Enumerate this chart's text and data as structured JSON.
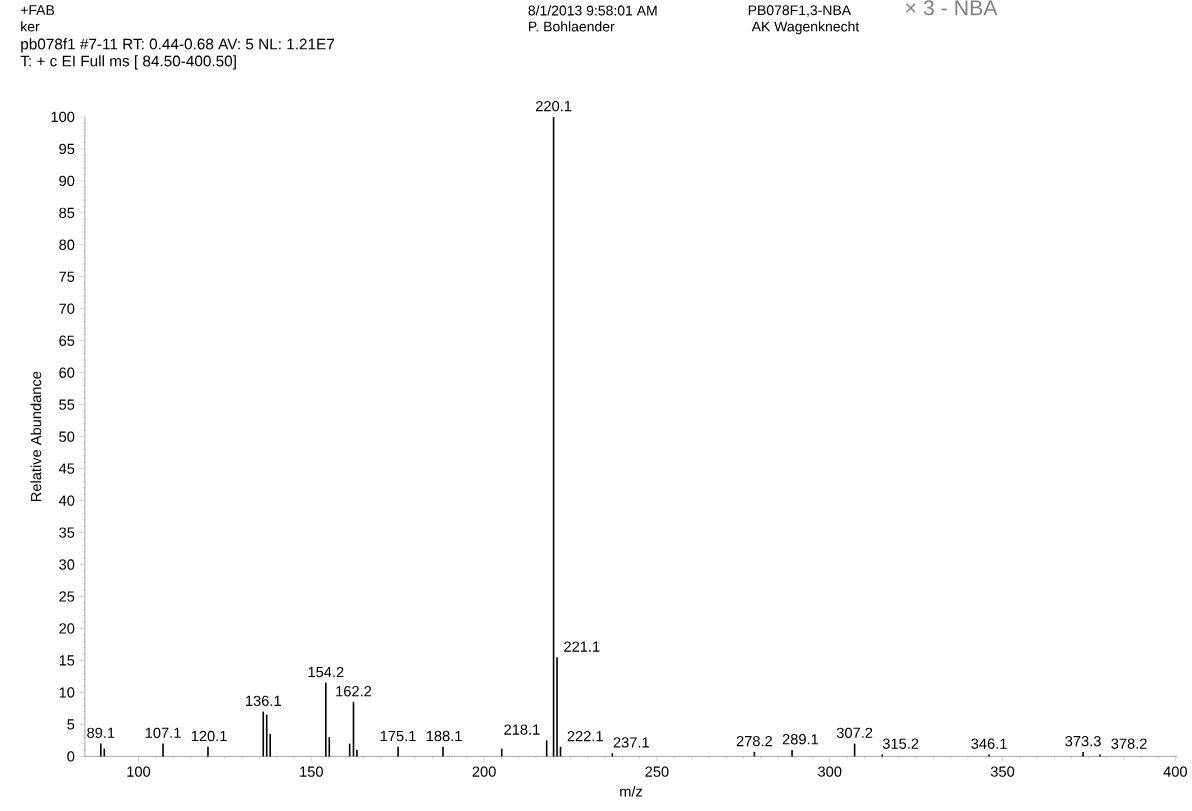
{
  "chart_data": {
    "type": "bar",
    "xlabel": "m/z",
    "ylabel": "Relative Abundance",
    "color": "#000000",
    "x": [
      89.1,
      90.1,
      107.1,
      120.1,
      136.1,
      137.1,
      138.1,
      154.2,
      155.2,
      161.1,
      162.2,
      163.2,
      175.1,
      188.1,
      205.1,
      218.1,
      220.1,
      221.1,
      222.1,
      237.1,
      278.2,
      289.1,
      307.2,
      315.2,
      346.1,
      373.3,
      378.2
    ],
    "values": [
      2.0,
      1.2,
      2.0,
      1.5,
      7.0,
      6.5,
      3.5,
      11.5,
      3.0,
      2.0,
      8.5,
      1.0,
      1.5,
      1.5,
      1.2,
      2.5,
      100,
      15.5,
      1.5,
      0.5,
      0.7,
      1.0,
      2.0,
      0.3,
      0.3,
      0.7,
      0.3
    ],
    "xlim": [
      84.5,
      400.5
    ],
    "ylim": [
      0,
      100
    ],
    "xticks": [
      100,
      150,
      200,
      250,
      300,
      350,
      400
    ],
    "yticks": [
      0,
      5,
      10,
      15,
      20,
      25,
      30,
      35,
      40,
      45,
      50,
      55,
      60,
      65,
      70,
      75,
      80,
      85,
      90,
      95,
      100
    ],
    "annotations": [
      "+FAB",
      "ker",
      "8/1/2013 9:58:01 AM",
      "P. Bohlaender",
      "PB078F1,3-NBA",
      "AK Wagenknecht",
      "pb078f1 #7-11  RT: 0.44-0.68  AV: 5  NL: 1.21E7",
      "T: + c EI Full ms [ 84.50-400.50]",
      "× 3 - NBA",
      {
        "text": "89.1",
        "x": 89.1,
        "y": 2.0
      },
      {
        "text": "107.1",
        "x": 107.1,
        "y": 2.0
      },
      {
        "text": "120.1",
        "x": 120.1,
        "y": 1.5
      },
      {
        "text": "136.1",
        "x": 136.1,
        "y": 7.0
      },
      {
        "text": "154.2",
        "x": 154.2,
        "y": 11.5
      },
      {
        "text": "162.2",
        "x": 162.2,
        "y": 8.5
      },
      {
        "text": "175.1",
        "x": 175.1,
        "y": 1.5
      },
      {
        "text": "188.1",
        "x": 188.1,
        "y": 1.5
      },
      {
        "text": "218.1",
        "x": 218.1,
        "y": 2.5
      },
      {
        "text": "220.1",
        "x": 220.1,
        "y": 100
      },
      {
        "text": "221.1",
        "x": 221.1,
        "y": 15.5
      },
      {
        "text": "222.1",
        "x": 222.1,
        "y": 1.5
      },
      {
        "text": "237.1",
        "x": 237.1,
        "y": 0.5
      },
      {
        "text": "278.2",
        "x": 278.2,
        "y": 0.7
      },
      {
        "text": "289.1",
        "x": 289.1,
        "y": 1.0
      },
      {
        "text": "307.2",
        "x": 307.2,
        "y": 2.0
      },
      {
        "text": "315.2",
        "x": 315.2,
        "y": 0.3
      },
      {
        "text": "346.1",
        "x": 346.1,
        "y": 0.3
      },
      {
        "text": "373.3",
        "x": 373.3,
        "y": 0.7
      },
      {
        "text": "378.2",
        "x": 378.2,
        "y": 0.3
      }
    ]
  }
}
